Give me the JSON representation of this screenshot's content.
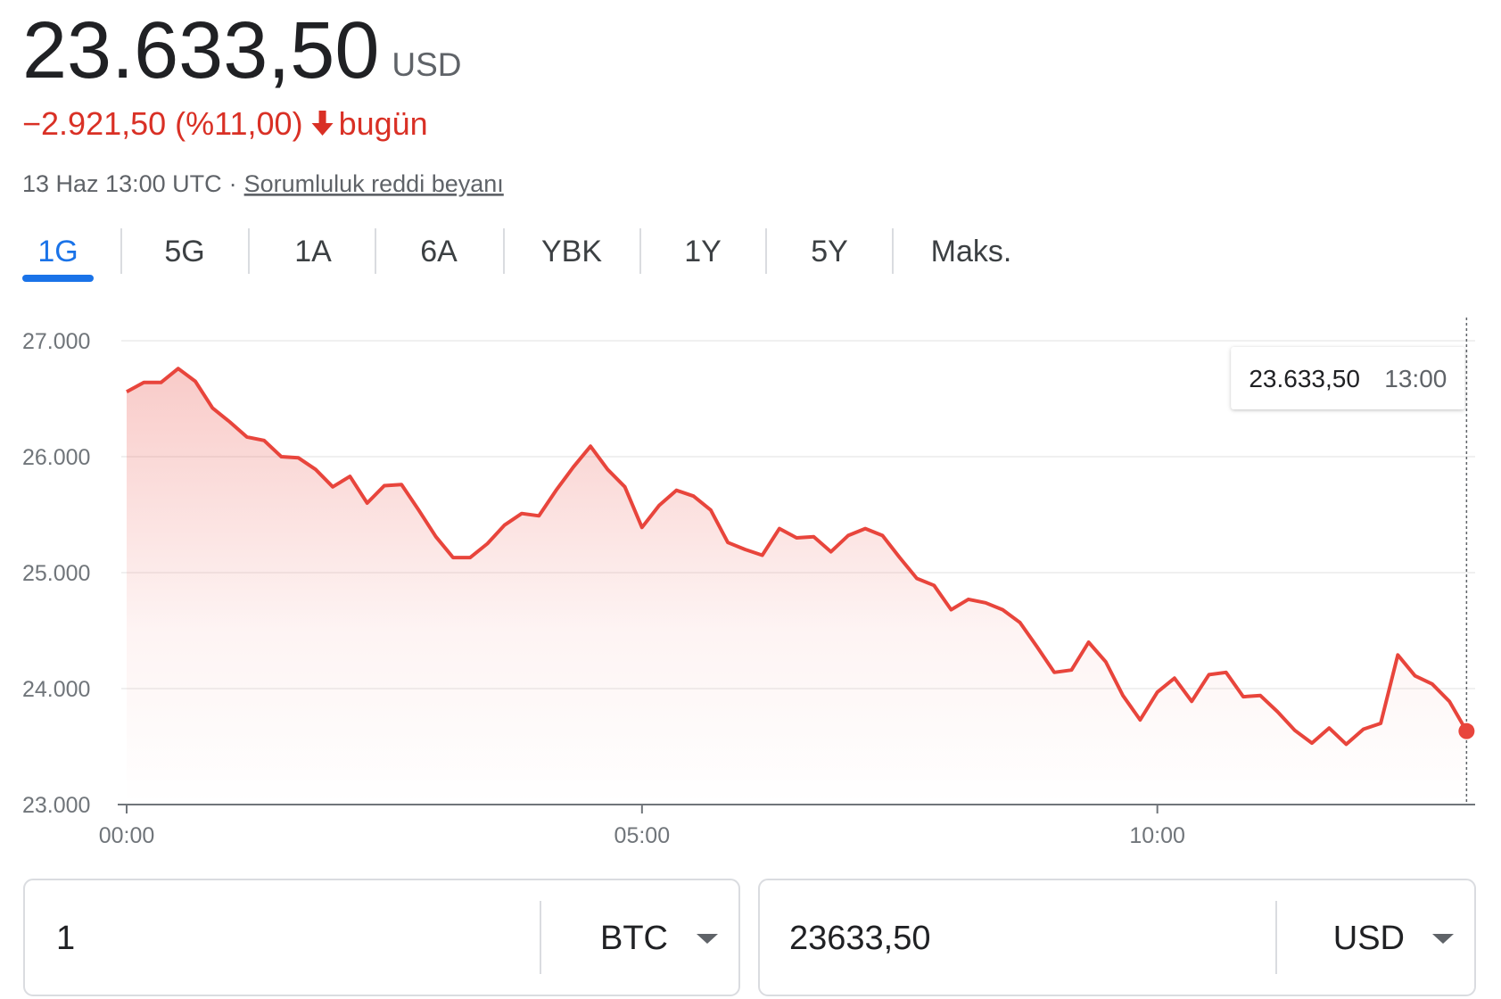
{
  "header": {
    "price": "23.633,50",
    "currency": "USD",
    "change": "−2.921,50 (%11,00)",
    "period": "bugün",
    "timestamp": "13 Haz 13:00 UTC",
    "separator": "·",
    "disclaimer": "Sorumluluk reddi beyanı"
  },
  "tabs": [
    "1G",
    "5G",
    "1A",
    "6A",
    "YBK",
    "1Y",
    "5Y",
    "Maks."
  ],
  "chart_data": {
    "type": "line",
    "color": "#e8453c",
    "x": [
      0,
      10,
      20,
      30,
      40,
      50,
      60,
      70,
      80,
      90,
      100,
      110,
      120,
      130,
      140,
      150,
      160,
      170,
      180,
      190,
      200,
      210,
      220,
      230,
      240,
      250,
      260,
      270,
      280,
      290,
      300,
      310,
      320,
      330,
      340,
      350,
      360,
      370,
      380,
      390,
      400,
      410,
      420,
      430,
      440,
      450,
      460,
      470,
      480,
      490,
      500,
      510,
      520,
      530,
      540,
      550,
      560,
      570,
      580,
      590,
      600,
      610,
      620,
      630,
      640,
      650,
      660,
      670,
      680,
      690,
      700,
      710,
      720,
      730,
      740,
      750,
      760,
      770,
      780
    ],
    "values": [
      26560,
      26640,
      26640,
      26760,
      26650,
      26420,
      26300,
      26170,
      26140,
      26000,
      25990,
      25890,
      25740,
      25830,
      25600,
      25750,
      25760,
      25540,
      25310,
      25130,
      25130,
      25250,
      25410,
      25510,
      25490,
      25710,
      25910,
      26090,
      25890,
      25740,
      25390,
      25580,
      25710,
      25660,
      25540,
      25260,
      25200,
      25150,
      25380,
      25300,
      25310,
      25180,
      25320,
      25380,
      25320,
      25130,
      24950,
      24890,
      24680,
      24770,
      24740,
      24680,
      24570,
      24360,
      24140,
      24160,
      24400,
      24230,
      23940,
      23730,
      23970,
      24090,
      23890,
      24120,
      24140,
      23930,
      23940,
      23800,
      23640,
      23530,
      23660,
      23520,
      23650,
      23700,
      24290,
      24110,
      24040,
      23890,
      23633.5
    ],
    "xlim": [
      0,
      785
    ],
    "xticks": [
      {
        "value": 0,
        "label": "00:00"
      },
      {
        "value": 300,
        "label": "05:00"
      },
      {
        "value": 600,
        "label": "10:00"
      }
    ],
    "ylim": [
      23000,
      27000
    ],
    "yticks": [
      {
        "value": 23000,
        "label": "23.000"
      },
      {
        "value": 24000,
        "label": "24.000"
      },
      {
        "value": 25000,
        "label": "25.000"
      },
      {
        "value": 26000,
        "label": "26.000"
      },
      {
        "value": 27000,
        "label": "27.000"
      }
    ],
    "grid": true,
    "tooltip": {
      "value": "23.633,50",
      "time": "13:00"
    }
  },
  "converter": {
    "from_amount": "1",
    "from_currency": "BTC",
    "to_amount": "23633,50",
    "to_currency": "USD"
  }
}
